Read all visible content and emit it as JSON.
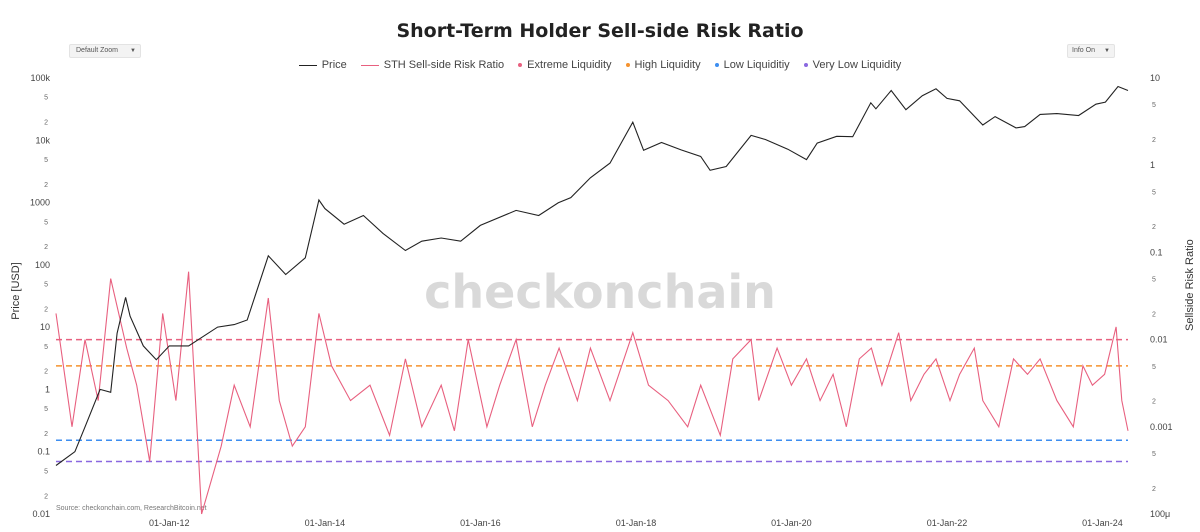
{
  "title": "Short-Term Holder Sell-side Risk Ratio",
  "controls": {
    "zoom_label": "Default Zoom",
    "info_label": "Info On"
  },
  "watermark": "checkonchain",
  "source": "Source: checkonchain.com, ResearchBitcoin.net",
  "colors": {
    "price": "#222222",
    "ratio": "#e8607f",
    "extreme": "#e8607f",
    "high": "#f5922e",
    "low": "#3d8ef0",
    "very_low": "#8a68e0"
  },
  "chart_data": {
    "type": "line",
    "title": "Short-Term Holder Sell-side Risk Ratio",
    "x_ticks": [
      "01-Jan-12",
      "01-Jan-14",
      "01-Jan-16",
      "01-Jan-18",
      "01-Jan-20",
      "01-Jan-22",
      "01-Jan-24"
    ],
    "x_range": [
      "2010-07-18",
      "2024-04-30"
    ],
    "y_left": {
      "label": "Price [USD]",
      "scale": "log",
      "range": [
        0.01,
        100000
      ],
      "ticks": [
        {
          "v": 100000,
          "t": "100k"
        },
        {
          "v": 50000,
          "t": "5"
        },
        {
          "v": 20000,
          "t": "2"
        },
        {
          "v": 10000,
          "t": "10k"
        },
        {
          "v": 5000,
          "t": "5"
        },
        {
          "v": 2000,
          "t": "2"
        },
        {
          "v": 1000,
          "t": "1000"
        },
        {
          "v": 500,
          "t": "5"
        },
        {
          "v": 200,
          "t": "2"
        },
        {
          "v": 100,
          "t": "100"
        },
        {
          "v": 50,
          "t": "5"
        },
        {
          "v": 20,
          "t": "2"
        },
        {
          "v": 10,
          "t": "10"
        },
        {
          "v": 5,
          "t": "5"
        },
        {
          "v": 2,
          "t": "2"
        },
        {
          "v": 1,
          "t": "1"
        },
        {
          "v": 0.5,
          "t": "5"
        },
        {
          "v": 0.2,
          "t": "2"
        },
        {
          "v": 0.1,
          "t": "0.1"
        },
        {
          "v": 0.05,
          "t": "5"
        },
        {
          "v": 0.02,
          "t": "2"
        },
        {
          "v": 0.01,
          "t": "0.01"
        }
      ]
    },
    "y_right": {
      "label": "Sellside Risk Ratio",
      "scale": "log",
      "range": [
        0.0001,
        10
      ],
      "ticks": [
        {
          "v": 10,
          "t": "10"
        },
        {
          "v": 5,
          "t": "5"
        },
        {
          "v": 2,
          "t": "2"
        },
        {
          "v": 1,
          "t": "1"
        },
        {
          "v": 0.5,
          "t": "5"
        },
        {
          "v": 0.2,
          "t": "2"
        },
        {
          "v": 0.1,
          "t": "0.1"
        },
        {
          "v": 0.05,
          "t": "5"
        },
        {
          "v": 0.02,
          "t": "2"
        },
        {
          "v": 0.01,
          "t": "0.01"
        },
        {
          "v": 0.005,
          "t": "5"
        },
        {
          "v": 0.002,
          "t": "2"
        },
        {
          "v": 0.001,
          "t": "0.001"
        },
        {
          "v": 0.0005,
          "t": "5"
        },
        {
          "v": 0.0002,
          "t": "2"
        },
        {
          "v": 0.0001,
          "t": "100μ"
        }
      ]
    },
    "thresholds": [
      {
        "name": "Extreme Liquidity",
        "value": 0.01,
        "color": "#e8607f"
      },
      {
        "name": "High Liquidity",
        "value": 0.005,
        "color": "#f5922e"
      },
      {
        "name": "Low Liquiditiy",
        "value": 0.0007,
        "color": "#3d8ef0"
      },
      {
        "name": "Very Low Liquidity",
        "value": 0.0004,
        "color": "#8a68e0"
      }
    ],
    "legend": [
      "Price",
      "STH Sell-side Risk Ratio",
      "Extreme Liquidity",
      "High Liquidity",
      "Low Liquiditiy",
      "Very Low Liquidity"
    ],
    "series": [
      {
        "name": "Price",
        "x": [
          "2010-07-18",
          "2010-10-15",
          "2010-12-01",
          "2011-02-10",
          "2011-04-01",
          "2011-05-01",
          "2011-06-10",
          "2011-07-01",
          "2011-09-01",
          "2011-11-01",
          "2012-01-01",
          "2012-04-01",
          "2012-08-15",
          "2012-11-01",
          "2013-01-01",
          "2013-04-10",
          "2013-07-01",
          "2013-10-01",
          "2013-12-04",
          "2014-01-01",
          "2014-04-01",
          "2014-07-01",
          "2014-10-01",
          "2015-01-14",
          "2015-04-01",
          "2015-07-01",
          "2015-10-01",
          "2016-01-01",
          "2016-06-17",
          "2016-10-01",
          "2017-01-01",
          "2017-03-01",
          "2017-06-01",
          "2017-09-01",
          "2017-12-17",
          "2018-02-06",
          "2018-05-01",
          "2018-08-01",
          "2018-11-01",
          "2018-12-15",
          "2019-03-01",
          "2019-06-26",
          "2019-09-01",
          "2019-12-15",
          "2020-03-12",
          "2020-05-01",
          "2020-08-01",
          "2020-10-15",
          "2021-01-08",
          "2021-02-01",
          "2021-04-14",
          "2021-06-22",
          "2021-09-07",
          "2021-11-10",
          "2022-01-01",
          "2022-03-01",
          "2022-06-18",
          "2022-08-15",
          "2022-11-21",
          "2023-01-01",
          "2023-03-14",
          "2023-06-01",
          "2023-09-11",
          "2023-12-01",
          "2024-01-15",
          "2024-03-14",
          "2024-04-30"
        ],
        "y": [
          0.06,
          0.1,
          0.25,
          1,
          0.9,
          8,
          30,
          15,
          5,
          3,
          5,
          5,
          10,
          11,
          13,
          140,
          70,
          130,
          1100,
          800,
          450,
          620,
          320,
          170,
          240,
          270,
          240,
          430,
          750,
          620,
          990,
          1200,
          2500,
          4300,
          19500,
          6900,
          9200,
          7000,
          5500,
          3300,
          3800,
          12000,
          10300,
          7200,
          4900,
          9000,
          11600,
          11400,
          40000,
          32000,
          63000,
          31000,
          52000,
          67000,
          47000,
          43000,
          17600,
          24000,
          15800,
          16600,
          26000,
          26800,
          25000,
          38000,
          41000,
          73000,
          63000
        ]
      },
      {
        "name": "STH Sell-side Risk Ratio",
        "x": [
          "2010-07-18",
          "2010-10-01",
          "2010-12-01",
          "2011-02-01",
          "2011-04-01",
          "2011-06-15",
          "2011-08-01",
          "2011-10-01",
          "2011-12-01",
          "2012-02-01",
          "2012-04-01",
          "2012-06-01",
          "2012-09-01",
          "2012-11-01",
          "2013-01-15",
          "2013-04-10",
          "2013-06-01",
          "2013-08-01",
          "2013-10-01",
          "2013-12-04",
          "2014-02-01",
          "2014-05-01",
          "2014-08-01",
          "2014-11-01",
          "2015-01-14",
          "2015-04-01",
          "2015-07-01",
          "2015-09-01",
          "2015-11-05",
          "2016-02-01",
          "2016-04-01",
          "2016-06-17",
          "2016-09-01",
          "2016-11-01",
          "2017-01-05",
          "2017-04-01",
          "2017-06-01",
          "2017-09-01",
          "2017-12-17",
          "2018-03-01",
          "2018-06-01",
          "2018-09-01",
          "2018-11-01",
          "2019-02-01",
          "2019-04-01",
          "2019-06-26",
          "2019-08-01",
          "2019-10-26",
          "2020-01-01",
          "2020-03-12",
          "2020-05-15",
          "2020-07-15",
          "2020-09-15",
          "2020-11-15",
          "2021-01-11",
          "2021-03-01",
          "2021-05-19",
          "2021-07-15",
          "2021-09-15",
          "2021-11-10",
          "2022-01-15",
          "2022-03-01",
          "2022-05-09",
          "2022-06-18",
          "2022-09-01",
          "2022-11-09",
          "2023-01-14",
          "2023-03-14",
          "2023-06-01",
          "2023-08-17",
          "2023-10-01",
          "2023-11-15",
          "2024-01-11",
          "2024-03-05",
          "2024-04-01",
          "2024-04-30"
        ],
        "y": [
          0.02,
          0.001,
          0.01,
          0.002,
          0.05,
          0.008,
          0.003,
          0.0004,
          0.02,
          0.002,
          0.06,
          0.0001,
          0.0006,
          0.003,
          0.001,
          0.03,
          0.002,
          0.0006,
          0.001,
          0.02,
          0.005,
          0.002,
          0.003,
          0.0008,
          0.006,
          0.001,
          0.003,
          0.0009,
          0.01,
          0.001,
          0.003,
          0.01,
          0.001,
          0.003,
          0.008,
          0.002,
          0.008,
          0.002,
          0.012,
          0.003,
          0.002,
          0.001,
          0.003,
          0.0008,
          0.006,
          0.01,
          0.002,
          0.008,
          0.003,
          0.006,
          0.002,
          0.004,
          0.001,
          0.006,
          0.008,
          0.003,
          0.012,
          0.002,
          0.004,
          0.006,
          0.002,
          0.004,
          0.008,
          0.002,
          0.001,
          0.006,
          0.004,
          0.006,
          0.002,
          0.001,
          0.005,
          0.003,
          0.004,
          0.014,
          0.002,
          0.0009
        ]
      }
    ]
  }
}
